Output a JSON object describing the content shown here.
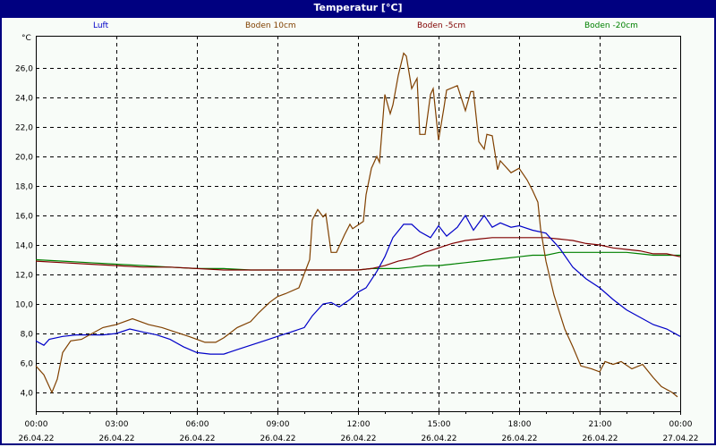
{
  "window": {
    "title": "Temperatur [°C]"
  },
  "legend": [
    {
      "label": "Luft",
      "color": "#0000c8"
    },
    {
      "label": "Boden 10cm",
      "color": "#804000"
    },
    {
      "label": "Boden -5cm",
      "color": "#800000"
    },
    {
      "label": "Boden -20cm",
      "color": "#008000"
    }
  ],
  "axis": {
    "y_unit": "°C"
  },
  "chart_data": {
    "type": "line",
    "title": "Temperatur [°C]",
    "xlabel": "",
    "ylabel": "°C",
    "ylim": [
      3.0,
      28.0
    ],
    "xlim_hours": [
      0,
      24
    ],
    "grid": true,
    "legend_position": "top",
    "y_ticks": [
      "4,0",
      "6,0",
      "8,0",
      "10,0",
      "12,0",
      "14,0",
      "16,0",
      "18,0",
      "20,0",
      "22,0",
      "24,0",
      "26,0"
    ],
    "x_ticks": [
      {
        "time": "00:00",
        "date": "26.04.22"
      },
      {
        "time": "03:00",
        "date": "26.04.22"
      },
      {
        "time": "06:00",
        "date": "26.04.22"
      },
      {
        "time": "09:00",
        "date": "26.04.22"
      },
      {
        "time": "12:00",
        "date": "26.04.22"
      },
      {
        "time": "15:00",
        "date": "26.04.22"
      },
      {
        "time": "18:00",
        "date": "26.04.22"
      },
      {
        "time": "21:00",
        "date": "26.04.22"
      },
      {
        "time": "00:00",
        "date": "27.04.22"
      }
    ],
    "series": [
      {
        "name": "Luft",
        "color": "#0000c8",
        "x": [
          0,
          0.3,
          0.5,
          1,
          1.5,
          2,
          2.5,
          3,
          3.5,
          4,
          4.5,
          5,
          5.5,
          6,
          6.5,
          7,
          7.5,
          8,
          8.5,
          9,
          9.5,
          10,
          10.3,
          10.7,
          11,
          11.3,
          11.7,
          12,
          12.3,
          12.7,
          13,
          13.3,
          13.7,
          14,
          14.3,
          14.7,
          15,
          15.3,
          15.7,
          16,
          16.3,
          16.7,
          17,
          17.3,
          17.7,
          18,
          18.5,
          19,
          19.5,
          20,
          20.5,
          21,
          21.5,
          22,
          22.5,
          23,
          23.5,
          24
        ],
        "values": [
          7.5,
          7.2,
          7.6,
          7.8,
          7.9,
          7.9,
          7.9,
          8.0,
          8.3,
          8.1,
          7.9,
          7.6,
          7.1,
          6.7,
          6.6,
          6.6,
          6.9,
          7.2,
          7.5,
          7.8,
          8.1,
          8.4,
          9.2,
          10.0,
          10.1,
          9.8,
          10.3,
          10.8,
          11.1,
          12.2,
          13.2,
          14.5,
          15.4,
          15.4,
          14.9,
          14.5,
          15.3,
          14.6,
          15.2,
          16.0,
          15.0,
          16.0,
          15.2,
          15.5,
          15.2,
          15.3,
          15.0,
          14.8,
          13.8,
          12.5,
          11.7,
          11.1,
          10.3,
          9.6,
          9.1,
          8.6,
          8.3,
          7.8
        ]
      },
      {
        "name": "Boden 10cm",
        "color": "#804000",
        "x": [
          0,
          0.3,
          0.6,
          0.8,
          1,
          1.3,
          1.7,
          2,
          2.5,
          3,
          3.6,
          4.2,
          4.7,
          5.2,
          5.7,
          6.3,
          6.7,
          7,
          7.5,
          8,
          8.3,
          8.7,
          9,
          9.3,
          9.8,
          10.2,
          10.3,
          10.5,
          10.7,
          10.8,
          11,
          11.2,
          11.5,
          11.7,
          11.8,
          12.2,
          12.3,
          12.5,
          12.7,
          12.8,
          13,
          13.2,
          13.3,
          13.5,
          13.7,
          13.8,
          14,
          14.2,
          14.3,
          14.5,
          14.7,
          14.8,
          15,
          15.2,
          15.3,
          15.7,
          16,
          16.2,
          16.3,
          16.5,
          16.7,
          16.8,
          17,
          17.2,
          17.3,
          17.7,
          18,
          18.3,
          18.5,
          18.7,
          18.8,
          19,
          19.3,
          19.7,
          20,
          20.3,
          20.7,
          21,
          21.2,
          21.5,
          21.8,
          22.2,
          22.6,
          23,
          23.3,
          23.7,
          23.9
        ],
        "values": [
          5.8,
          5.2,
          4.0,
          4.9,
          6.7,
          7.5,
          7.6,
          7.9,
          8.4,
          8.6,
          9.0,
          8.6,
          8.4,
          8.1,
          7.8,
          7.4,
          7.4,
          7.7,
          8.4,
          8.8,
          9.4,
          10.1,
          10.5,
          10.7,
          11.1,
          13.0,
          15.7,
          16.4,
          15.9,
          16.1,
          13.5,
          13.5,
          14.7,
          15.4,
          15.1,
          15.6,
          17.4,
          19.2,
          20.0,
          19.6,
          24.2,
          22.9,
          23.5,
          25.5,
          27.0,
          26.8,
          24.6,
          25.3,
          21.5,
          21.5,
          24.2,
          24.6,
          21.1,
          23.3,
          24.5,
          24.8,
          23.1,
          24.4,
          24.4,
          21.0,
          20.5,
          21.5,
          21.4,
          19.1,
          19.7,
          18.9,
          19.2,
          18.4,
          17.7,
          16.9,
          15.1,
          12.9,
          10.6,
          8.3,
          7.1,
          5.8,
          5.6,
          5.4,
          6.1,
          5.9,
          6.1,
          5.6,
          5.9,
          5.0,
          4.4,
          4.0,
          3.7
        ]
      },
      {
        "name": "Boden -5cm",
        "color": "#800000",
        "x": [
          0,
          1,
          2,
          3,
          4,
          5,
          6,
          7,
          8,
          9,
          10,
          11,
          11.5,
          12,
          12.5,
          13,
          13.5,
          14,
          14.5,
          15,
          15.5,
          16,
          16.5,
          17,
          17.5,
          18,
          18.5,
          19,
          19.5,
          20,
          20.5,
          21,
          21.5,
          22,
          22.5,
          23,
          23.5,
          24
        ],
        "values": [
          12.9,
          12.8,
          12.7,
          12.6,
          12.5,
          12.5,
          12.4,
          12.3,
          12.3,
          12.3,
          12.3,
          12.3,
          12.3,
          12.3,
          12.4,
          12.6,
          12.9,
          13.1,
          13.5,
          13.8,
          14.1,
          14.3,
          14.4,
          14.5,
          14.5,
          14.5,
          14.5,
          14.5,
          14.4,
          14.3,
          14.1,
          14.0,
          13.8,
          13.7,
          13.6,
          13.4,
          13.4,
          13.2
        ]
      },
      {
        "name": "Boden -20cm",
        "color": "#008000",
        "x": [
          0,
          1,
          2,
          3,
          4,
          5,
          6,
          7,
          8,
          9,
          10,
          11,
          12,
          12.5,
          13,
          13.5,
          14,
          14.5,
          15,
          15.5,
          16,
          16.5,
          17,
          17.5,
          18,
          18.5,
          19,
          19.5,
          20,
          20.5,
          21,
          21.5,
          22,
          22.5,
          23,
          23.5,
          24
        ],
        "values": [
          13.0,
          12.9,
          12.8,
          12.7,
          12.6,
          12.5,
          12.4,
          12.4,
          12.3,
          12.3,
          12.3,
          12.3,
          12.3,
          12.4,
          12.4,
          12.4,
          12.5,
          12.6,
          12.6,
          12.7,
          12.8,
          12.9,
          13.0,
          13.1,
          13.2,
          13.3,
          13.3,
          13.5,
          13.5,
          13.5,
          13.5,
          13.5,
          13.5,
          13.4,
          13.3,
          13.3,
          13.3
        ]
      }
    ]
  }
}
